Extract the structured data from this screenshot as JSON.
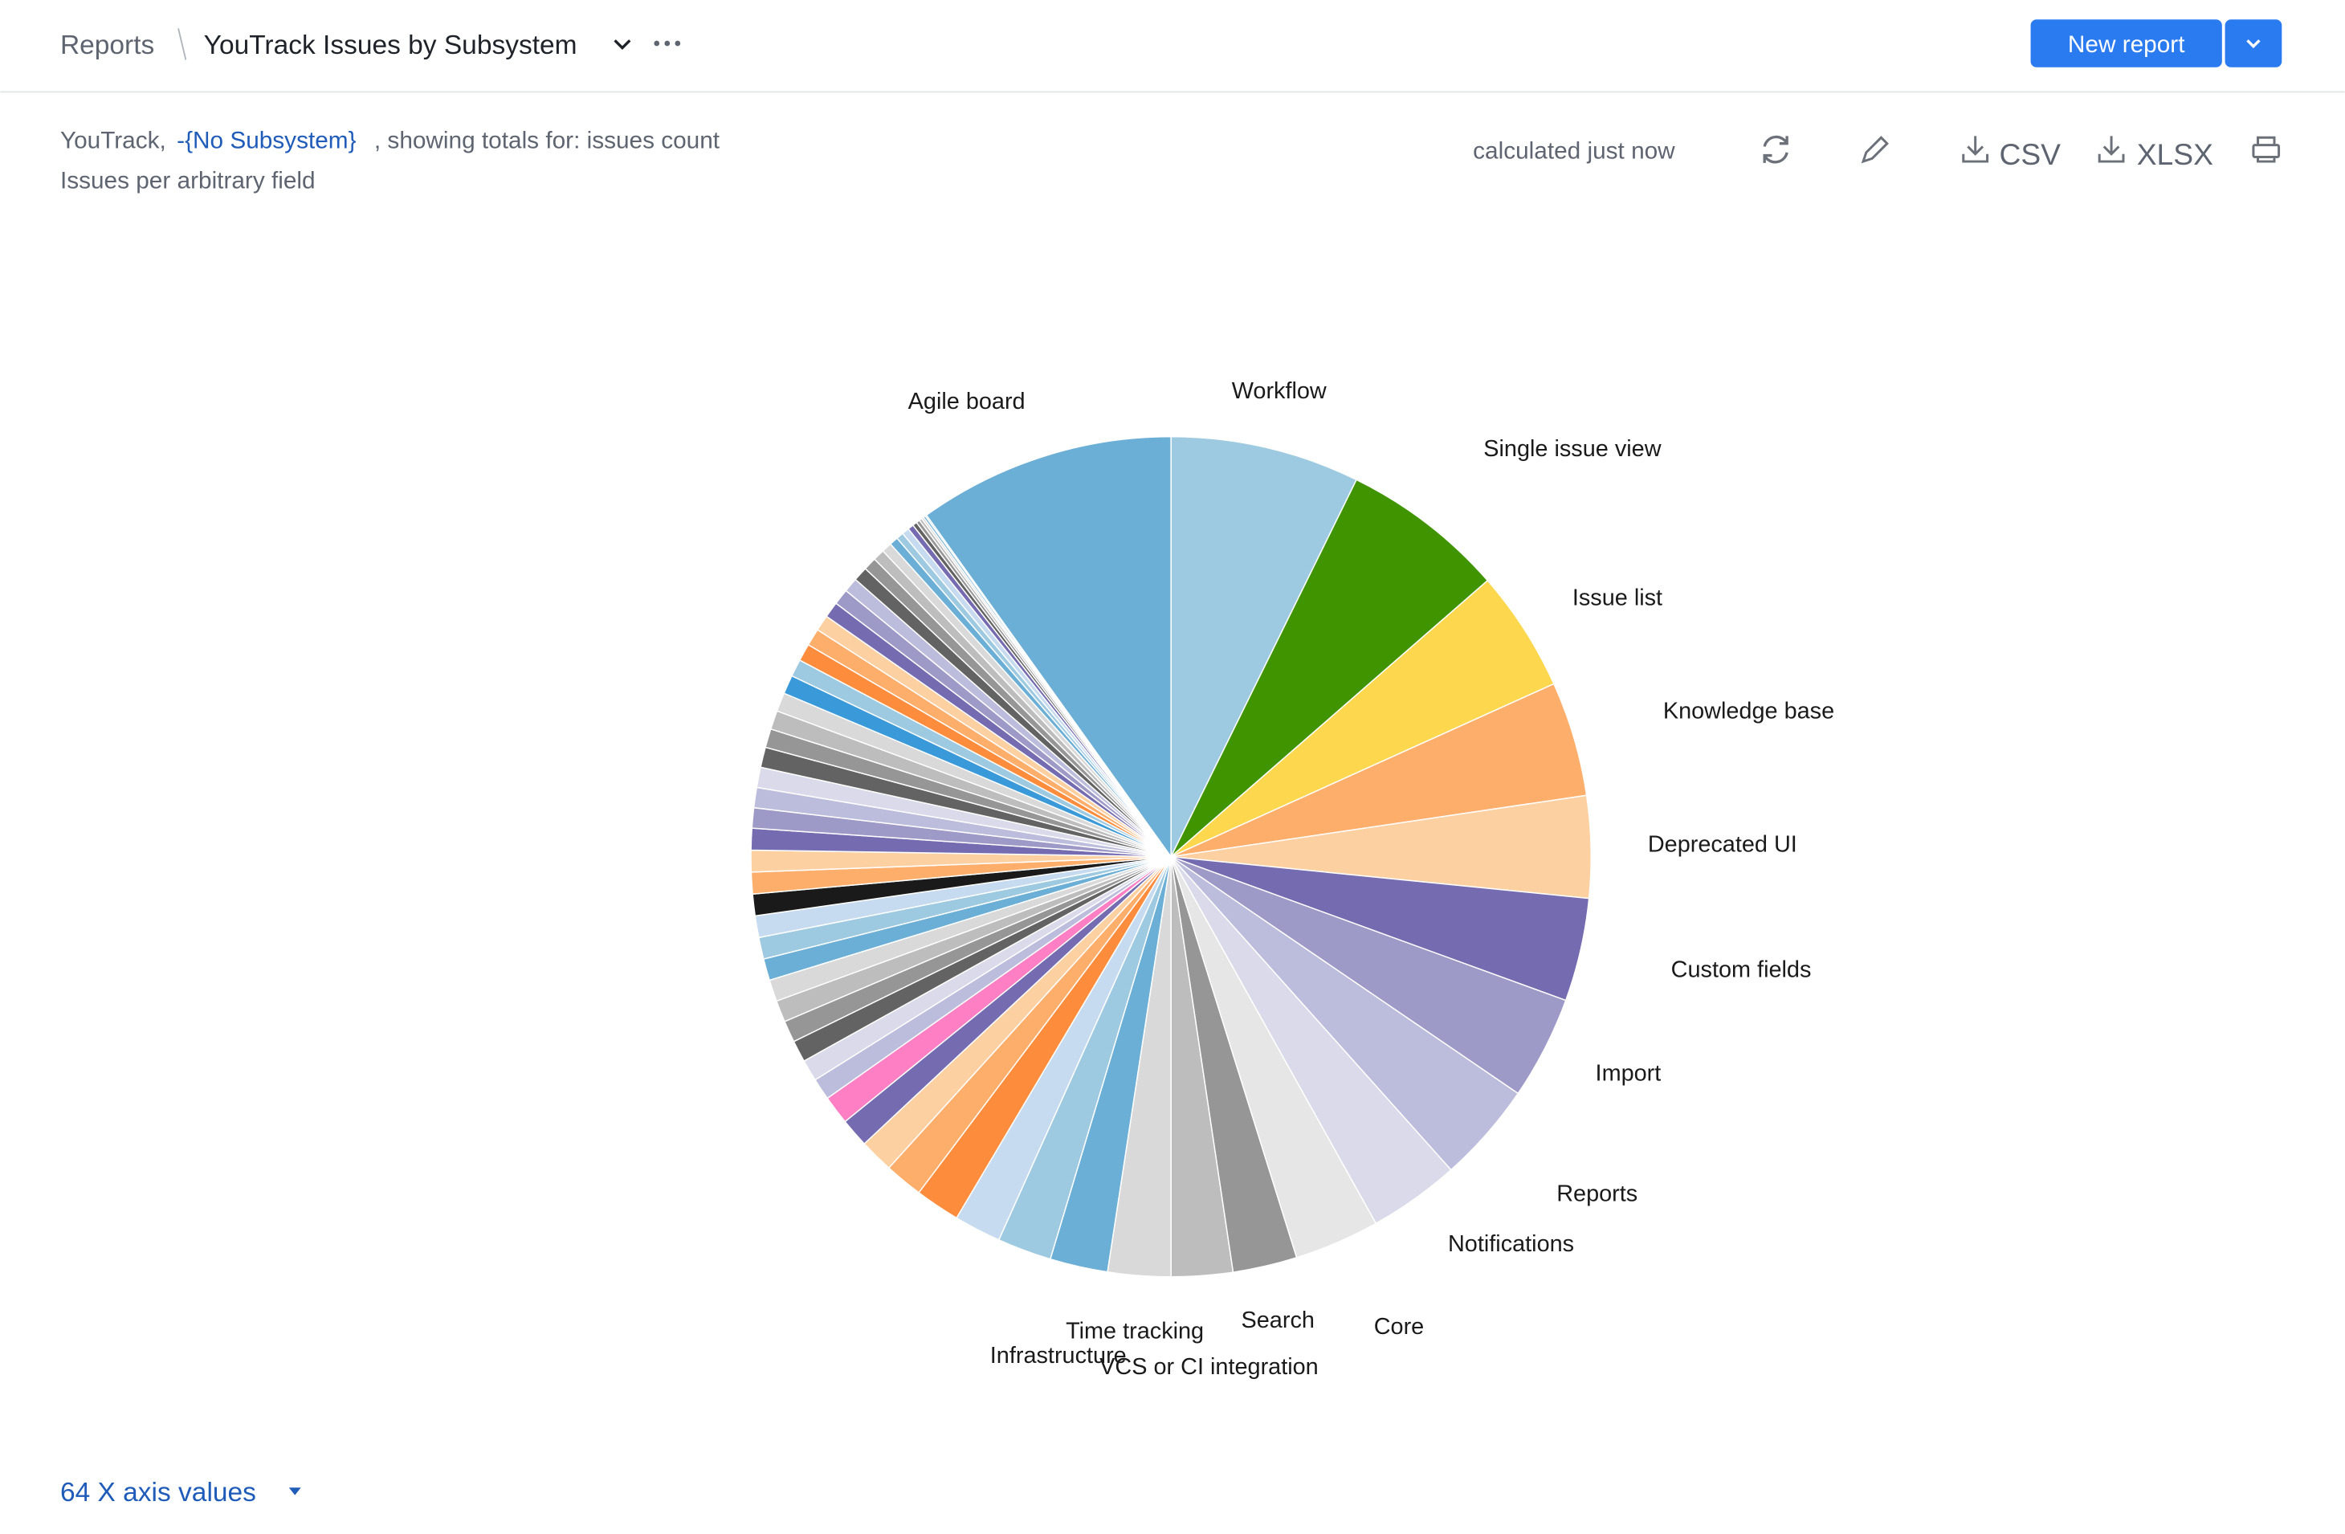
{
  "header": {
    "breadcrumb": "Reports",
    "title": "YouTrack Issues by Subsystem",
    "new_report": "New report"
  },
  "filter": {
    "project": "YouTrack,",
    "subsystem": "-{No Subsystem}",
    "totals": ", showing totals for: issues count",
    "subtitle": "Issues per arbitrary field"
  },
  "toolbar": {
    "status": "calculated just now",
    "csv": "CSV",
    "xlsx": "XLSX"
  },
  "chart_data": {
    "type": "pie",
    "categories": [
      "Workflow",
      "Single issue view",
      "Issue list",
      "Knowledge base",
      "Deprecated UI",
      "Custom fields",
      "Import",
      "Reports",
      "Notifications",
      "Core",
      "Search",
      "VCS or CI integration",
      "Time tracking",
      "Infrastructure",
      null,
      null,
      null,
      null,
      null,
      null,
      null,
      null,
      null,
      null,
      null,
      null,
      null,
      null,
      null,
      null,
      null,
      null,
      null,
      null,
      null,
      null,
      null,
      null,
      null,
      null,
      null,
      null,
      null,
      null,
      null,
      null,
      null,
      null,
      null,
      null,
      null,
      null,
      null,
      null,
      null,
      null,
      null,
      null,
      null,
      null,
      null,
      null,
      null,
      "Agile board"
    ],
    "values": [
      26.2,
      22.7,
      16.8,
      15.9,
      14.1,
      14.3,
      14.3,
      13.9,
      12.6,
      11.8,
      8.9,
      8.5,
      8.7,
      8.0,
      7.5,
      6.5,
      6.2,
      5.3,
      4.7,
      4.0,
      4.0,
      3.0,
      3.0,
      3.0,
      3.0,
      3.0,
      3.0,
      3.0,
      3.0,
      3.0,
      3.0,
      3.0,
      3.0,
      3.0,
      2.8,
      2.8,
      2.8,
      2.8,
      2.6,
      2.6,
      2.6,
      2.6,
      2.4,
      2.4,
      2.4,
      2.2,
      2.2,
      2.2,
      2.0,
      2.0,
      1.8,
      1.6,
      1.4,
      1.2,
      1.0,
      1.0,
      0.8,
      0.6,
      0.5,
      0.4,
      0.3,
      0.3,
      0.2,
      35.6
    ],
    "colors": [
      "#9ecae1",
      "#3f9400",
      "#fdd84f",
      "#fdae6b",
      "#fdd0a2",
      "#756bb1",
      "#9e9ac8",
      "#bcbddc",
      "#dadaeb",
      "#e6e6e6",
      "#969696",
      "#bdbdbd",
      "#d9d9d9",
      "#6baed6",
      "#9ecae1",
      "#c6dbef",
      "#fd8d3c",
      "#fdae6b",
      "#fdd0a2",
      "#756bb1",
      "#ff7fc4",
      "#bcbddc",
      "#dadaeb",
      "#636363",
      "#969696",
      "#bdbdbd",
      "#d9d9d9",
      "#6baed6",
      "#9ecae1",
      "#c6dbef",
      "#1a1a1a",
      "#fdae6b",
      "#fdd0a2",
      "#756bb1",
      "#9e9ac8",
      "#bcbddc",
      "#dadaeb",
      "#636363",
      "#969696",
      "#bdbdbd",
      "#d9d9d9",
      "#3a9ad9",
      "#9ecae1",
      "#fd8d3c",
      "#fdae6b",
      "#fdd0a2",
      "#756bb1",
      "#9e9ac8",
      "#bcbddc",
      "#636363",
      "#969696",
      "#bdbdbd",
      "#d9d9d9",
      "#6baed6",
      "#9ecae1",
      "#c6dbef",
      "#756bb1",
      "#636363",
      "#969696",
      "#bdbdbd",
      "#d9d9d9",
      "#6baed6",
      "#9ecae1",
      "#6baed6"
    ]
  },
  "footer": {
    "x_axis_values": "64 X axis values"
  }
}
